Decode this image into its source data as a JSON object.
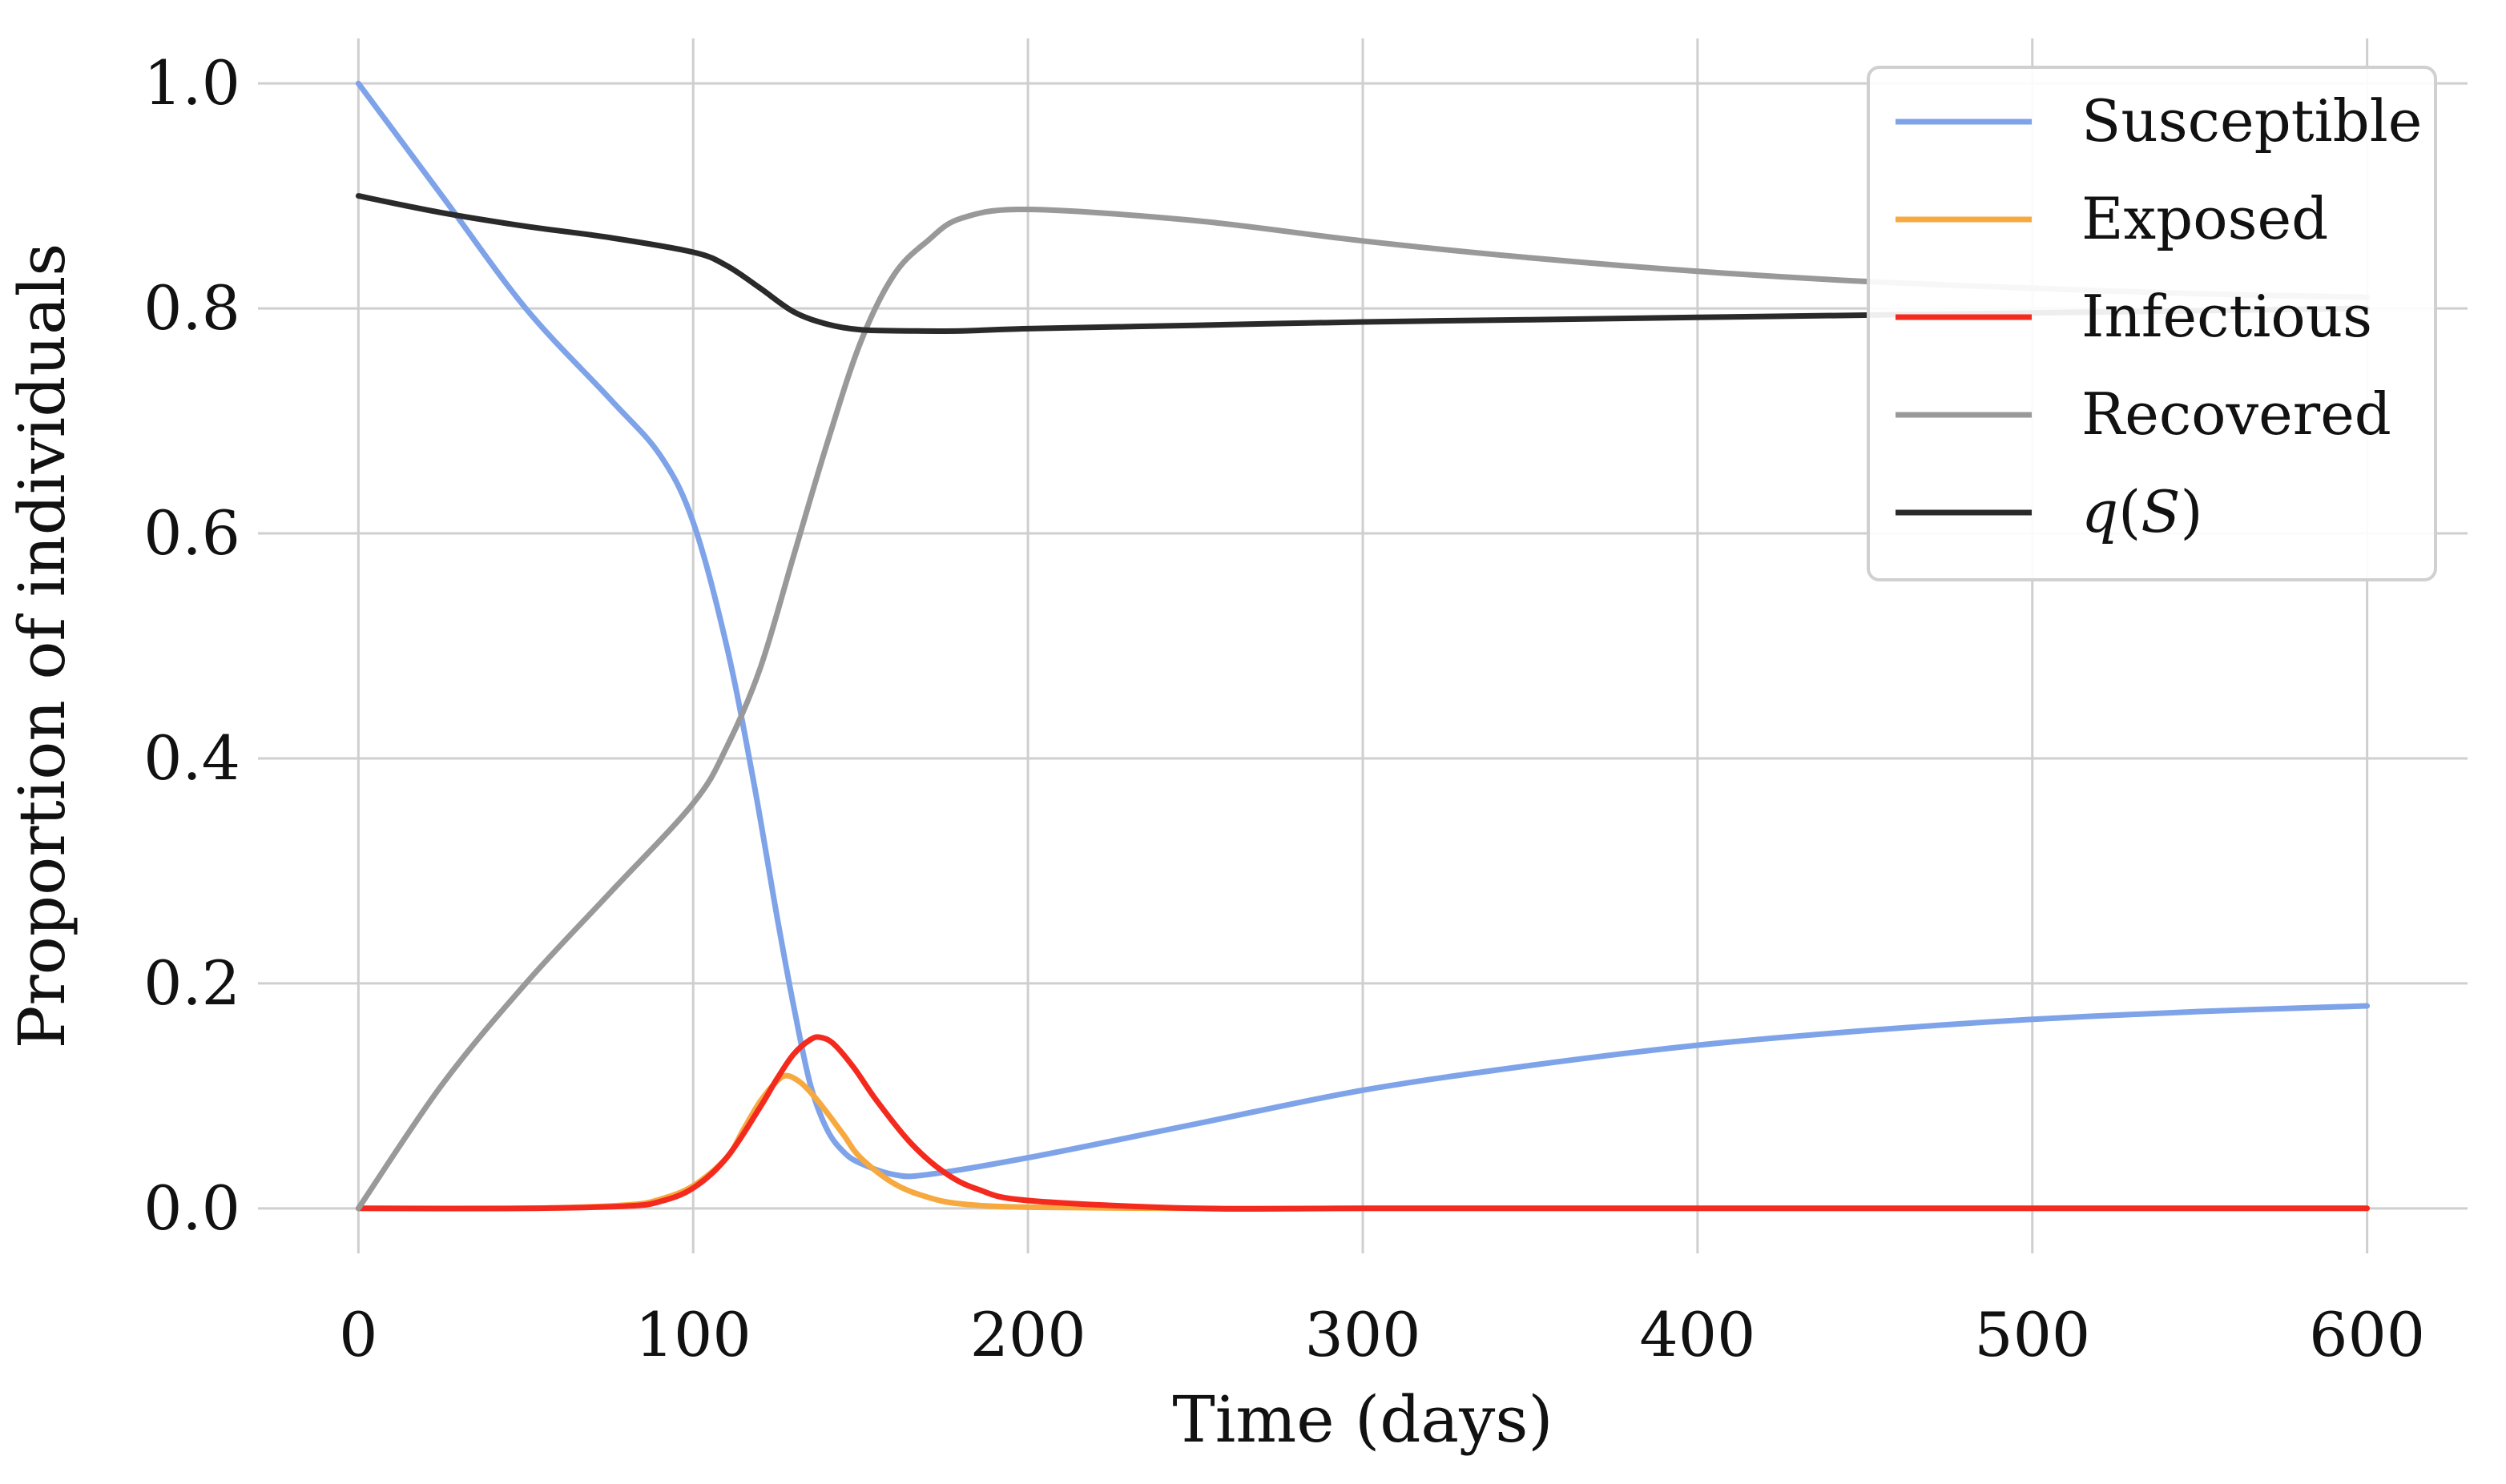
{
  "chart_data": {
    "type": "line",
    "title": "",
    "xlabel": "Time (days)",
    "ylabel": "Proportion of individuals",
    "xlim": [
      -30,
      630
    ],
    "ylim": [
      -0.04,
      1.04
    ],
    "xticks": [
      0,
      100,
      200,
      300,
      400,
      500,
      600
    ],
    "yticks": [
      0.0,
      0.2,
      0.4,
      0.6,
      0.8,
      1.0
    ],
    "xtick_labels": [
      "0",
      "100",
      "200",
      "300",
      "400",
      "500",
      "600"
    ],
    "ytick_labels": [
      "0.0",
      "0.2",
      "0.4",
      "0.6",
      "0.8",
      "1.0"
    ],
    "grid": true,
    "legend_position": "top-right",
    "series": [
      {
        "name": "Susceptible",
        "color": "#7ea3e8",
        "x": [
          0,
          25,
          50,
          75,
          90,
          100,
          110,
          118,
          125,
          130,
          135,
          140,
          145,
          150,
          160,
          170,
          200,
          250,
          300,
          350,
          400,
          450,
          500,
          550,
          600
        ],
        "values": [
          1.0,
          0.9,
          0.8,
          0.72,
          0.67,
          0.61,
          0.5,
          0.38,
          0.26,
          0.18,
          0.11,
          0.07,
          0.05,
          0.04,
          0.03,
          0.03,
          0.045,
          0.075,
          0.105,
          0.127,
          0.145,
          0.158,
          0.168,
          0.175,
          0.18
        ]
      },
      {
        "name": "Exposed",
        "color": "#f7a940",
        "x": [
          0,
          50,
          80,
          90,
          100,
          110,
          115,
          120,
          125,
          128,
          132,
          136,
          140,
          145,
          150,
          160,
          170,
          180,
          200,
          250,
          300,
          400,
          500,
          600
        ],
        "values": [
          0.0,
          0.0,
          0.003,
          0.008,
          0.02,
          0.045,
          0.07,
          0.095,
          0.113,
          0.118,
          0.112,
          0.1,
          0.085,
          0.065,
          0.045,
          0.022,
          0.01,
          0.004,
          0.001,
          0.0,
          0.0,
          0.0,
          0.0,
          0.0
        ]
      },
      {
        "name": "Infectious",
        "color": "#f42a1f",
        "x": [
          0,
          50,
          80,
          90,
          100,
          110,
          120,
          125,
          130,
          135,
          138,
          142,
          148,
          155,
          165,
          175,
          185,
          200,
          250,
          300,
          400,
          500,
          600
        ],
        "values": [
          0.0,
          0.0,
          0.002,
          0.006,
          0.018,
          0.045,
          0.09,
          0.115,
          0.137,
          0.15,
          0.152,
          0.146,
          0.125,
          0.095,
          0.058,
          0.032,
          0.017,
          0.007,
          0.0,
          0.0,
          0.0,
          0.0,
          0.0
        ]
      },
      {
        "name": "Recovered",
        "color": "#999999",
        "x": [
          0,
          25,
          50,
          75,
          100,
          110,
          120,
          130,
          140,
          150,
          160,
          170,
          180,
          200,
          250,
          300,
          350,
          400,
          450,
          500,
          550,
          600
        ],
        "values": [
          0.0,
          0.11,
          0.2,
          0.28,
          0.36,
          0.41,
          0.48,
          0.58,
          0.68,
          0.77,
          0.83,
          0.86,
          0.88,
          0.888,
          0.878,
          0.86,
          0.845,
          0.833,
          0.824,
          0.818,
          0.813,
          0.81
        ]
      },
      {
        "name": "q(S)",
        "legend_base": "q",
        "legend_arg": "S",
        "color": "#2a2a2a",
        "x": [
          0,
          25,
          50,
          75,
          100,
          110,
          120,
          130,
          140,
          150,
          165,
          180,
          200,
          250,
          300,
          350,
          400,
          450,
          500,
          550,
          600
        ],
        "values": [
          0.9,
          0.885,
          0.873,
          0.863,
          0.85,
          0.838,
          0.818,
          0.797,
          0.786,
          0.781,
          0.78,
          0.78,
          0.782,
          0.785,
          0.788,
          0.79,
          0.792,
          0.794,
          0.796,
          0.798,
          0.8
        ]
      }
    ]
  }
}
